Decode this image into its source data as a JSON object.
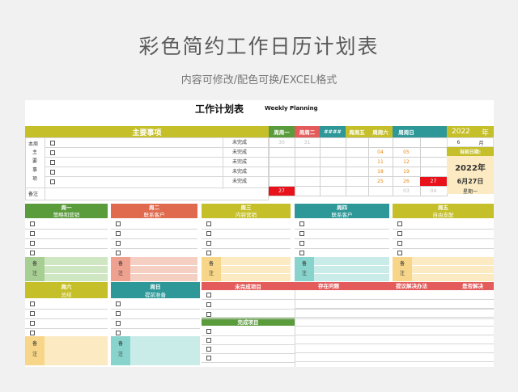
{
  "page": {
    "title": "彩色简约工作日历计划表",
    "subtitle": "内容可修改/配色可换/EXCEL格式"
  },
  "sheet": {
    "title": "工作计划表",
    "title_en": "Weekly Planning"
  },
  "main": {
    "header": "主要事项",
    "side_chars": [
      "本周",
      "主",
      "要",
      "事",
      "项"
    ],
    "status": [
      "未完成",
      "未完成",
      "未完成",
      "未完成",
      "未完成"
    ],
    "note_label": "备注"
  },
  "calendar": {
    "days": [
      "周周一",
      "周周二",
      "####",
      "周周五",
      "周周六",
      "周周日"
    ],
    "rows": [
      [
        "30",
        "31",
        "",
        "",
        "",
        ""
      ],
      [
        "",
        "",
        "",
        "04",
        "05",
        ""
      ],
      [
        "",
        "",
        "",
        "11",
        "12",
        ""
      ],
      [
        "",
        "",
        "",
        "18",
        "19",
        ""
      ],
      [
        "",
        "",
        "",
        "25",
        "26",
        "27"
      ],
      [
        "27",
        "",
        "",
        "",
        "03",
        "04"
      ]
    ],
    "year": "2022",
    "year_suffix": "年",
    "month": "6",
    "month_suffix": "月",
    "today_label": "当前日期:",
    "today_year": "2022年",
    "today_date": "6月27日",
    "today_weekday": "星期一"
  },
  "weekdays": [
    {
      "day": "周一",
      "topic": "策略和营销"
    },
    {
      "day": "周二",
      "topic": "联系客户"
    },
    {
      "day": "周三",
      "topic": "内容营销"
    },
    {
      "day": "周四",
      "topic": "联系客户"
    },
    {
      "day": "周五",
      "topic": "自由支配"
    }
  ],
  "weekend": [
    {
      "day": "周六",
      "topic": "总结"
    },
    {
      "day": "周日",
      "topic": "提前准备"
    }
  ],
  "note_chars": [
    "备",
    "注"
  ],
  "tracker": {
    "unfinished": "未完成项目",
    "problems": "存在问题",
    "solutions": "提议解决办法",
    "resolved": "是否解决",
    "completed": "完成项目"
  },
  "colors": {
    "olive": "#c5bf2a",
    "red": "#e35b5b",
    "green": "#5a9b3c",
    "orange": "#e06a4e",
    "teal": "#2e9898"
  }
}
